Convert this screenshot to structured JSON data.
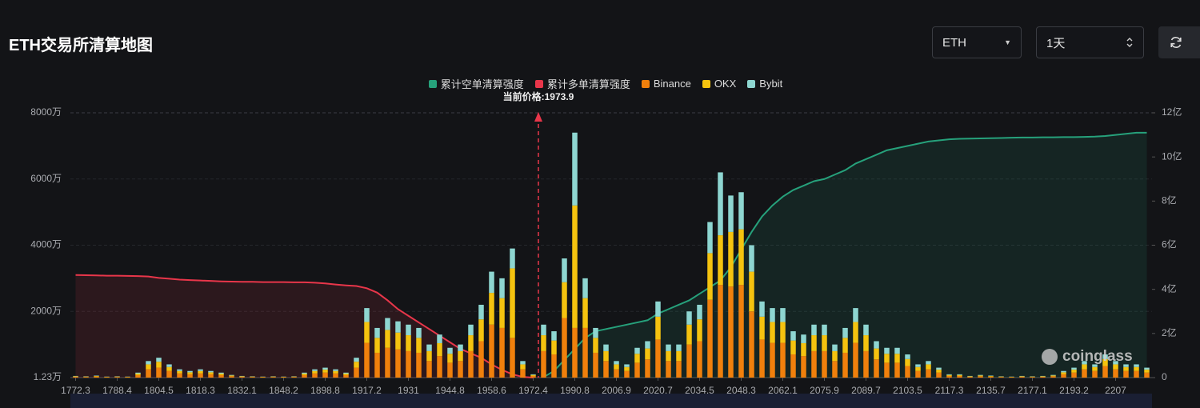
{
  "chart_data": {
    "type": "combo",
    "title": "ETH交易所清算地图",
    "annotation": "当前价格:1973.9",
    "watermark": "coinglass",
    "categories": [
      "1772.3",
      null,
      null,
      null,
      "1788.4",
      null,
      null,
      null,
      "1804.5",
      null,
      null,
      null,
      "1818.3",
      null,
      null,
      null,
      "1832.1",
      null,
      null,
      null,
      "1848.2",
      null,
      null,
      null,
      "1898.8",
      null,
      null,
      null,
      "1917.2",
      null,
      null,
      null,
      "1931",
      null,
      null,
      null,
      "1944.8",
      null,
      null,
      null,
      "1958.6",
      null,
      null,
      null,
      "1972.4",
      null,
      null,
      null,
      "1990.8",
      null,
      null,
      null,
      "2006.9",
      null,
      null,
      null,
      "2020.7",
      null,
      null,
      null,
      "2034.5",
      null,
      null,
      null,
      "2048.3",
      null,
      null,
      null,
      "2062.1",
      null,
      null,
      null,
      "2075.9",
      null,
      null,
      null,
      "2089.7",
      null,
      null,
      null,
      "2103.5",
      null,
      null,
      null,
      "2117.3",
      null,
      null,
      null,
      "2135.7",
      null,
      null,
      null,
      "2177.1",
      null,
      null,
      null,
      "2193.2",
      null,
      null,
      null,
      "2207",
      null,
      null,
      null
    ],
    "ylim": [
      12300,
      80000000
    ],
    "yticks": [
      {
        "value": 12300,
        "label": "1.23万"
      },
      {
        "value": 20000000,
        "label": "2000万"
      },
      {
        "value": 40000000,
        "label": "4000万"
      },
      {
        "value": 60000000,
        "label": "6000万"
      },
      {
        "value": 80000000,
        "label": "8000万"
      }
    ],
    "y2lim": [
      0,
      1200000000
    ],
    "y2ticks": [
      0,
      {
        "value": 200000000,
        "label": "2亿"
      },
      {
        "value": 400000000,
        "label": "4亿"
      },
      {
        "value": 600000000,
        "label": "6亿"
      },
      {
        "value": 800000000,
        "label": "8亿"
      },
      {
        "value": 1000000000,
        "label": "10亿"
      },
      {
        "value": 1200000000,
        "label": "12亿"
      }
    ],
    "grid": true,
    "series": [
      {
        "name": "累计空单清算强度",
        "type": "line",
        "axis": "y2",
        "color": "#26a17b",
        "values": [
          null,
          null,
          null,
          null,
          null,
          null,
          null,
          null,
          null,
          null,
          null,
          null,
          null,
          null,
          null,
          null,
          null,
          null,
          null,
          null,
          null,
          null,
          null,
          null,
          null,
          null,
          null,
          null,
          null,
          null,
          null,
          null,
          null,
          null,
          null,
          null,
          null,
          null,
          null,
          null,
          null,
          null,
          null,
          null,
          null,
          2000000,
          30000000,
          80000000,
          130000000,
          180000000,
          210000000,
          220000000,
          230000000,
          240000000,
          250000000,
          260000000,
          290000000,
          310000000,
          330000000,
          350000000,
          380000000,
          410000000,
          440000000,
          500000000,
          580000000,
          660000000,
          730000000,
          780000000,
          820000000,
          850000000,
          870000000,
          890000000,
          900000000,
          920000000,
          940000000,
          970000000,
          990000000,
          1010000000,
          1030000000,
          1040000000,
          1050000000,
          1060000000,
          1070000000,
          1075000000,
          1080000000,
          1082000000,
          1083000000,
          1084000000,
          1085000000,
          1086000000,
          1087000000,
          1088000000,
          1088000000,
          1089000000,
          1089000000,
          1090000000,
          1090000000,
          1091000000,
          1092000000,
          1095000000,
          1100000000,
          1105000000,
          1110000000,
          1110000000
        ]
      },
      {
        "name": "累计多单清算强度",
        "type": "line",
        "axis": "y2",
        "color": "#e8364a",
        "values": [
          465000000,
          464000000,
          463000000,
          462000000,
          462000000,
          461000000,
          460000000,
          458000000,
          452000000,
          448000000,
          444000000,
          442000000,
          440000000,
          438000000,
          436000000,
          435000000,
          434000000,
          434000000,
          433000000,
          433000000,
          433000000,
          432000000,
          432000000,
          430000000,
          427000000,
          422000000,
          418000000,
          415000000,
          405000000,
          385000000,
          350000000,
          310000000,
          280000000,
          250000000,
          220000000,
          190000000,
          160000000,
          130000000,
          110000000,
          90000000,
          60000000,
          35000000,
          15000000,
          3000000,
          0,
          null,
          null,
          null,
          null,
          null,
          null,
          null,
          null,
          null,
          null,
          null,
          null,
          null,
          null,
          null,
          null,
          null,
          null,
          null,
          null,
          null,
          null,
          null,
          null,
          null,
          null,
          null,
          null,
          null,
          null,
          null,
          null,
          null,
          null,
          null,
          null,
          null,
          null,
          null,
          null,
          null,
          null,
          null,
          null,
          null,
          null,
          null,
          null,
          null,
          null,
          null,
          null,
          null,
          null,
          null,
          null,
          null,
          null,
          null
        ]
      },
      {
        "name": "Binance",
        "type": "bar",
        "color": "#f0800c",
        "values": [
          250000,
          200000,
          300000,
          150000,
          200000,
          150000,
          750000,
          2500000,
          3000000,
          2000000,
          1250000,
          1000000,
          1250000,
          1000000,
          750000,
          400000,
          250000,
          200000,
          150000,
          200000,
          150000,
          200000,
          750000,
          1250000,
          1500000,
          1250000,
          750000,
          3000000,
          10500000,
          7500000,
          9000000,
          8500000,
          8000000,
          7500000,
          5000000,
          6500000,
          4500000,
          5000000,
          8000000,
          11000000,
          16000000,
          15000000,
          12000000,
          2500000,
          500000,
          8000000,
          7000000,
          18000000,
          15000000,
          15000000,
          7500000,
          5000000,
          2500000,
          2000000,
          4500000,
          5500000,
          11500000,
          5000000,
          5000000,
          10000000,
          11000000,
          23500000,
          28000000,
          27500000,
          28000000,
          20000000,
          11500000,
          10500000,
          10500000,
          7000000,
          6500000,
          8000000,
          8000000,
          5000000,
          7500000,
          10500000,
          8000000,
          5500000,
          4500000,
          4500000,
          3500000,
          2000000,
          2500000,
          1500000,
          500000,
          500000,
          250000,
          400000,
          300000,
          200000,
          150000,
          250000,
          200000,
          250000,
          400000,
          1000000,
          1500000,
          2500000,
          2000000,
          3500000,
          2500000,
          2000000,
          2000000,
          1500000
        ]
      },
      {
        "name": "OKX",
        "type": "bar",
        "color": "#f5c30f",
        "values": [
          150000,
          120000,
          180000,
          90000,
          120000,
          90000,
          450000,
          1500000,
          1800000,
          1200000,
          750000,
          600000,
          750000,
          600000,
          450000,
          240000,
          150000,
          120000,
          90000,
          120000,
          90000,
          120000,
          450000,
          750000,
          900000,
          750000,
          450000,
          1800000,
          6300000,
          4500000,
          5400000,
          5100000,
          4800000,
          4500000,
          3000000,
          3900000,
          2700000,
          3000000,
          4800000,
          6600000,
          9600000,
          9000000,
          21000000,
          1500000,
          300000,
          4800000,
          4200000,
          10800000,
          37000000,
          9000000,
          4500000,
          3000000,
          1500000,
          1200000,
          2700000,
          3300000,
          6900000,
          3000000,
          3000000,
          6000000,
          6600000,
          14100000,
          15000000,
          16500000,
          16800000,
          12000000,
          6900000,
          6300000,
          6300000,
          4200000,
          3900000,
          4800000,
          4800000,
          3000000,
          4500000,
          6300000,
          4800000,
          3300000,
          2700000,
          2700000,
          2100000,
          1200000,
          1500000,
          900000,
          300000,
          300000,
          150000,
          240000,
          180000,
          120000,
          90000,
          150000,
          120000,
          150000,
          240000,
          600000,
          900000,
          1500000,
          1200000,
          2100000,
          1500000,
          1200000,
          1200000,
          900000
        ]
      },
      {
        "name": "Bybit",
        "type": "bar",
        "color": "#8ed6d1",
        "values": [
          100000,
          80000,
          120000,
          60000,
          80000,
          60000,
          300000,
          1000000,
          1200000,
          800000,
          500000,
          400000,
          500000,
          400000,
          300000,
          160000,
          100000,
          80000,
          60000,
          80000,
          60000,
          80000,
          300000,
          500000,
          600000,
          500000,
          300000,
          1200000,
          4200000,
          3000000,
          3600000,
          3400000,
          3200000,
          3000000,
          2000000,
          2600000,
          1800000,
          2000000,
          3200000,
          4400000,
          6400000,
          6000000,
          6000000,
          1000000,
          200000,
          3200000,
          2800000,
          7200000,
          22000000,
          6000000,
          3000000,
          2000000,
          1000000,
          800000,
          1800000,
          2200000,
          4600000,
          2000000,
          2000000,
          4000000,
          4400000,
          9400000,
          19000000,
          11000000,
          11200000,
          8000000,
          4600000,
          4200000,
          4200000,
          2800000,
          2600000,
          3200000,
          3200000,
          2000000,
          3000000,
          4200000,
          3200000,
          2200000,
          1800000,
          1800000,
          1400000,
          800000,
          1000000,
          600000,
          200000,
          200000,
          100000,
          160000,
          120000,
          80000,
          60000,
          100000,
          80000,
          100000,
          160000,
          400000,
          600000,
          1000000,
          800000,
          1400000,
          1000000,
          800000,
          800000,
          600000
        ]
      }
    ]
  },
  "controls": {
    "symbol": "ETH",
    "period": "1天"
  }
}
